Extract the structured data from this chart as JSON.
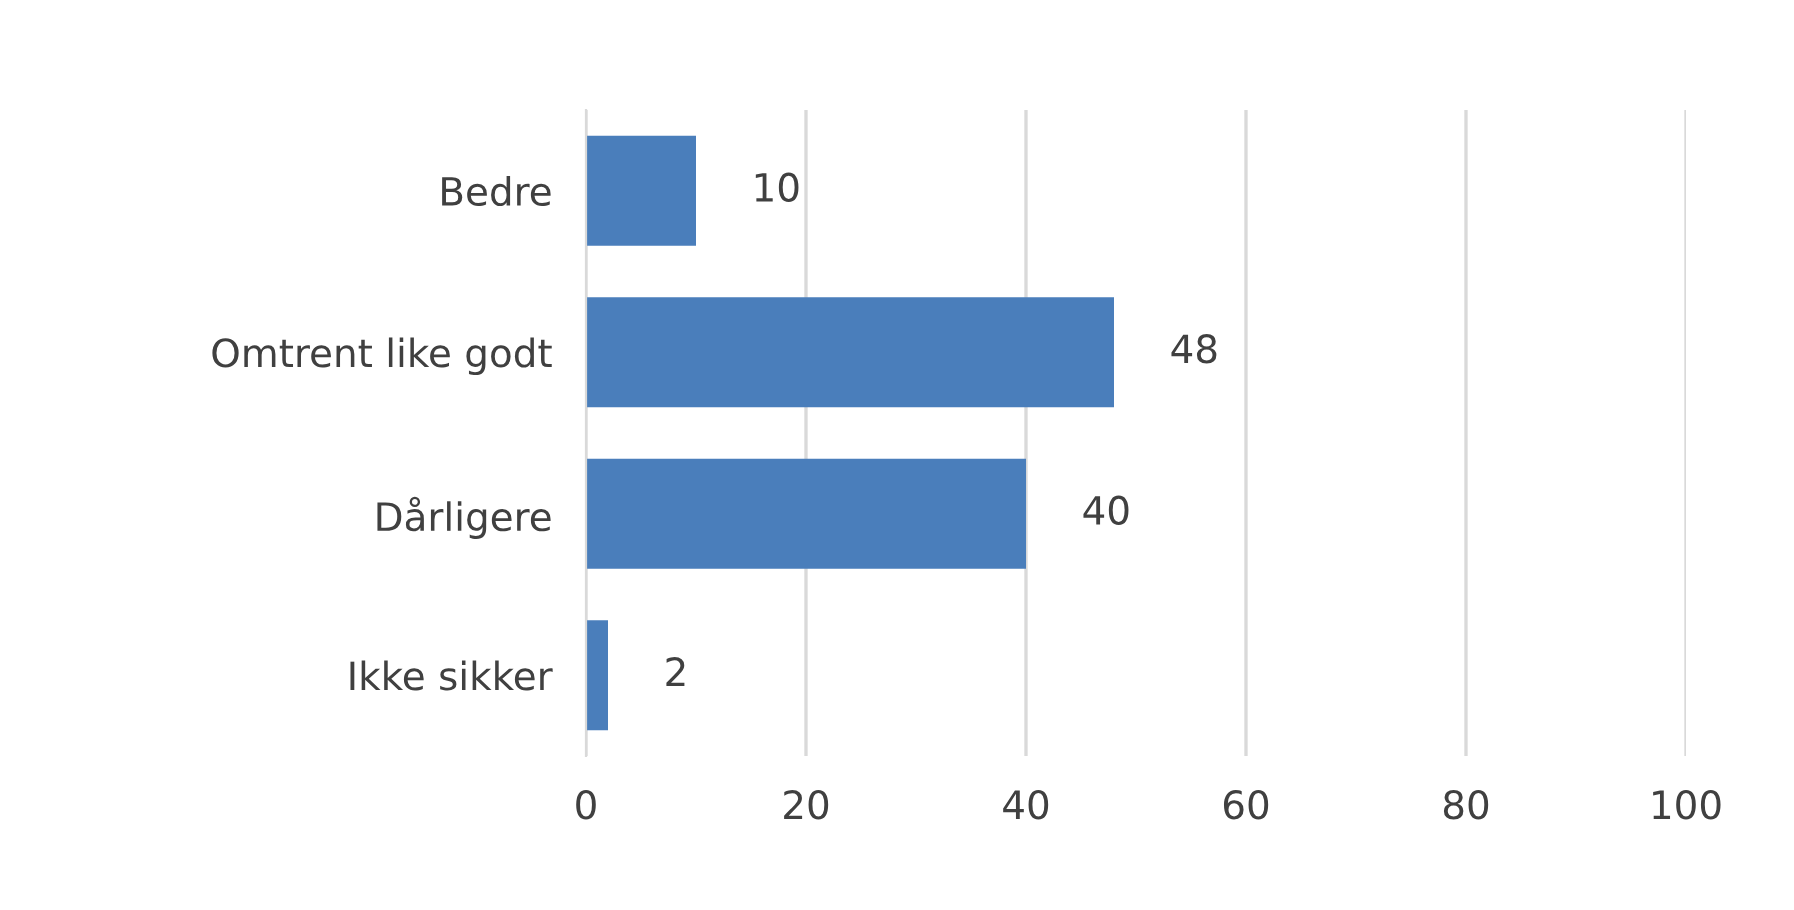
{
  "chart_data": {
    "type": "bar",
    "orientation": "horizontal",
    "categories": [
      "Bedre",
      "Omtrent like godt",
      "Dårligere",
      "Ikke sikker"
    ],
    "values": [
      10,
      48,
      40,
      2
    ],
    "color": "#4a7ebb",
    "data_labels": true,
    "xlim": [
      0,
      100
    ],
    "xticks": [
      0,
      20,
      40,
      60,
      80,
      100
    ],
    "grid": "x",
    "legend": false
  }
}
